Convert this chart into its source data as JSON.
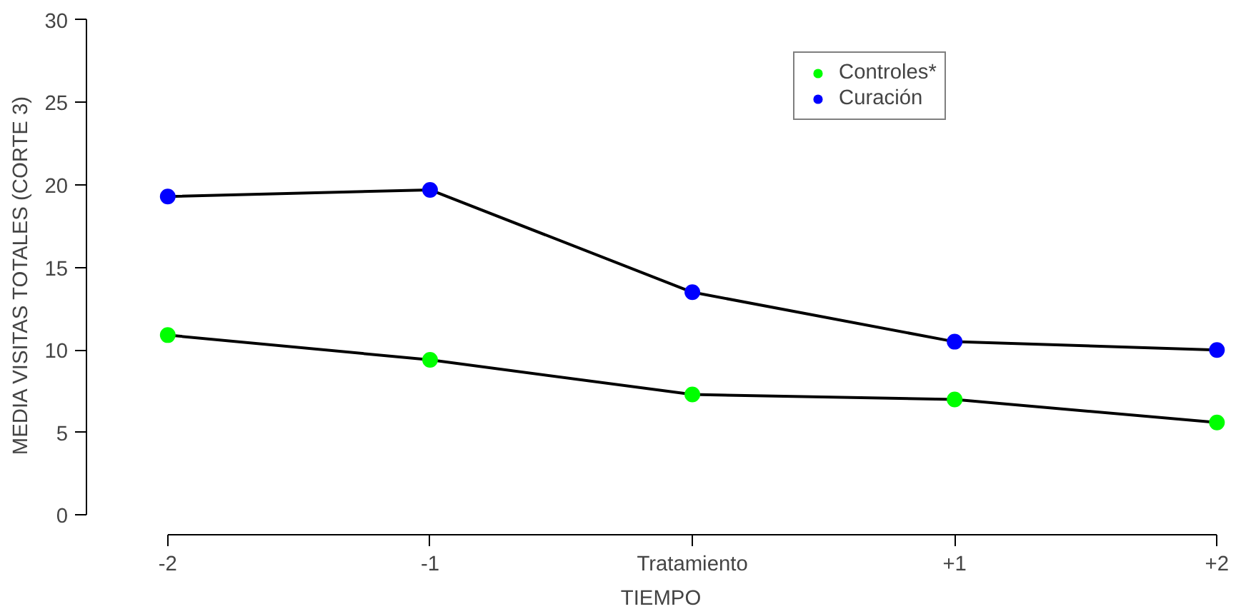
{
  "chart_data": {
    "type": "line",
    "xlabel": "TIEMPO",
    "ylabel": "MEDIA VISITAS TOTALES (CORTE 3)",
    "categories": [
      "-2",
      "-1",
      "Tratamiento",
      "+1",
      "+2"
    ],
    "series": [
      {
        "name": "Controles*",
        "color": "#00ff00",
        "values": [
          10.9,
          9.4,
          7.3,
          7.0,
          5.6
        ]
      },
      {
        "name": "Curación",
        "color": "#0000ff",
        "values": [
          19.3,
          19.7,
          13.5,
          10.5,
          10.0
        ]
      }
    ],
    "ylim": [
      0,
      30
    ],
    "yticks": [
      0,
      5,
      10,
      15,
      20,
      25,
      30
    ],
    "grid": false,
    "legend": "top right",
    "marker": "circle",
    "line_style": "solid"
  }
}
